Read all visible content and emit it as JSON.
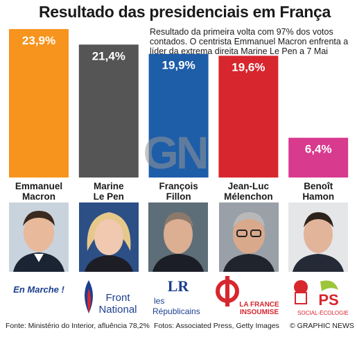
{
  "header": {
    "title": "Resultado das presidenciais em França",
    "subtitle": "Resultado da primeira volta com 97% dos votos contados. O centrista Emmanuel Macron enfrenta a líder da extrema direita Marine Le Pen a 7 Mai"
  },
  "chart_data": {
    "type": "bar",
    "categories": [
      "Emmanuel Macron",
      "Marine Le Pen",
      "François Fillon",
      "Jean-Luc Mélenchon",
      "Benoît Hamon"
    ],
    "values": [
      23.9,
      21.4,
      19.9,
      19.6,
      6.4
    ],
    "data_labels": [
      "23,9%",
      "21,4%",
      "19,9%",
      "19,6%",
      "6,4%"
    ],
    "name_lines": [
      [
        "Emmanuel",
        "Macron"
      ],
      [
        "Marine",
        "Le Pen"
      ],
      [
        "François",
        "Fillon"
      ],
      [
        "Jean-Luc",
        "Mélenchon"
      ],
      [
        "Benoît",
        "Hamon"
      ]
    ],
    "colors": [
      "#f7941d",
      "#555555",
      "#1e5da8",
      "#d7262e",
      "#d83a8e"
    ],
    "ylim": [
      0,
      24
    ],
    "grid": false
  },
  "logos": {
    "macron": "En Marche !",
    "lepen": [
      "Front",
      "National"
    ],
    "fillon": [
      "LR",
      "les",
      "Républicains"
    ],
    "melenchon": [
      "LA FRANCE",
      "INSOUMISE"
    ],
    "hamon": [
      "PS",
      "SOCIAL-ÉCOLOGIE"
    ]
  },
  "watermark": "GN",
  "footer": {
    "source": "Fonte: Ministério do Interior, afluência 78,2%",
    "photos": "Fotos: Associated Press, Getty Images",
    "copyright": "© GRAPHIC NEWS"
  }
}
